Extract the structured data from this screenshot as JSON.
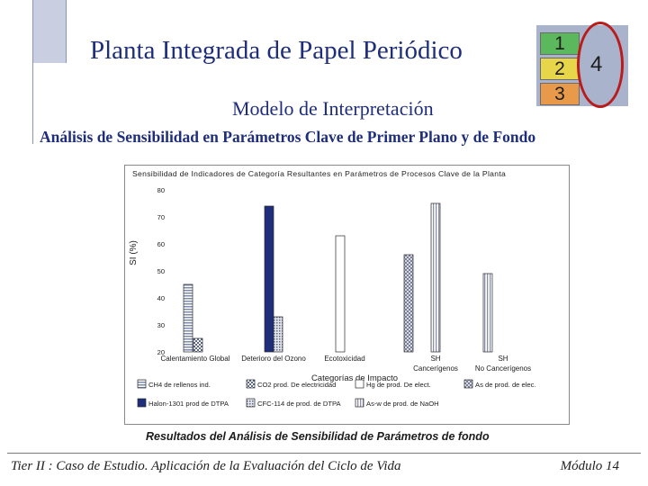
{
  "slide": {
    "title": "Planta Integrada de Papel Periódico",
    "subtitle": "Modelo de Interpretación",
    "heading": "Análisis de Sensibilidad en Parámetros Clave de Primer Plano y de Fondo",
    "caption": "Resultados del Análisis de Sensibilidad de Parámetros de fondo",
    "footer_left": "Tier II : Caso de Estudio. Aplicación de la Evaluación del Ciclo de Vida",
    "footer_right": "Módulo 14"
  },
  "logo": {
    "cells": [
      "1",
      "2",
      "3"
    ],
    "side": "4",
    "ring_color": "#b81c1c"
  },
  "chart_data": {
    "type": "bar",
    "title": "Sensibilidad de Indicadores de Categoría Resultantes en Parámetros de Procesos Clave de la Planta",
    "ylabel": "SI (%)",
    "xlabel": "Categorías de Impacto",
    "ylim": [
      20,
      80
    ],
    "yticks": [
      "80",
      "70",
      "60",
      "50",
      "40",
      "30",
      "20"
    ],
    "categories": [
      "Calentamiento Global",
      "Deterioro del Ozono",
      "Ecotoxicidad",
      "SH Cancerígenos",
      "SH No Cancerígenos"
    ],
    "series": [
      {
        "name": "CH4 de rellenos ind.",
        "values": [
          45,
          null,
          null,
          null,
          null
        ],
        "color": "#9aa8c4",
        "pattern": "hlines"
      },
      {
        "name": "CO2 prod. De electricidad",
        "values": [
          25,
          null,
          null,
          null,
          null
        ],
        "color": "#c8cfe2",
        "pattern": "checker"
      },
      {
        "name": "Halon-1301 prod de DTPA",
        "values": [
          null,
          74,
          null,
          null,
          null
        ],
        "color": "#1f2e7a",
        "pattern": "solid"
      },
      {
        "name": "CFC-114 de prod. de DTPA",
        "values": [
          null,
          33,
          null,
          null,
          null
        ],
        "color": "#c0c6d6",
        "pattern": "dots"
      },
      {
        "name": "Hg de prod. De elect.",
        "values": [
          null,
          null,
          63,
          null,
          null
        ],
        "color": "#ffffff",
        "pattern": "solid"
      },
      {
        "name": "As de prod. de elec.",
        "values": [
          null,
          null,
          null,
          56,
          null
        ],
        "color": "#b8bccc",
        "pattern": "cross"
      },
      {
        "name": "As-w de prod. de NaOH",
        "values": [
          null,
          null,
          null,
          75,
          49
        ],
        "color": "#e8eaf2",
        "pattern": "vlines"
      }
    ],
    "legend_placement": "bottom",
    "grid": false
  }
}
